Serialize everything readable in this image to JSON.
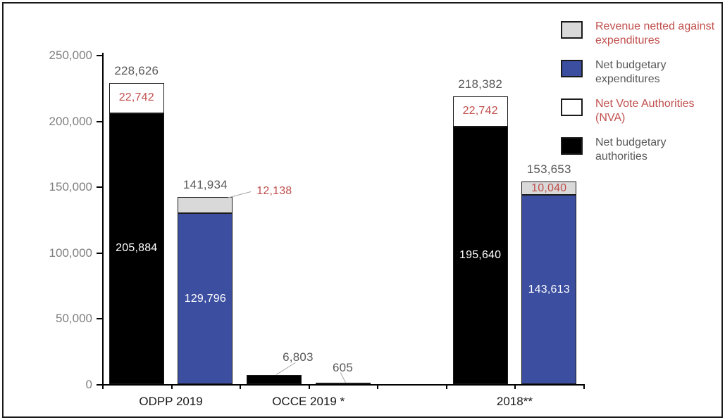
{
  "page": {
    "background": "#ffffff",
    "frame_border": "#1a1a1a"
  },
  "chart_data": {
    "type": "bar",
    "stacked": true,
    "title": "",
    "xlabel": "",
    "ylabel": "",
    "grid": false,
    "legend_position": "top-right",
    "ylim": [
      0,
      250000
    ],
    "slot_count": 7,
    "y_ticks": [
      {
        "value": 0,
        "label": "0"
      },
      {
        "value": 50000,
        "label": "50,000"
      },
      {
        "value": 100000,
        "label": "100,000"
      },
      {
        "value": 150000,
        "label": "150,000"
      },
      {
        "value": 200000,
        "label": "200,000"
      },
      {
        "value": 250000,
        "label": "250,000"
      }
    ],
    "categories": [
      "ODPP 2019",
      "OCCE 2019 *",
      "2018**"
    ],
    "category_labels": [
      {
        "text": "ODPP 2019",
        "slot_start": 0,
        "slot_end": 1
      },
      {
        "text": "OCCE 2019 *",
        "slot_start": 2,
        "slot_end": 3
      },
      {
        "text": "2018**",
        "slot_start": 5,
        "slot_end": 6
      }
    ],
    "colors": {
      "black": "#000000",
      "white": "#ffffff",
      "blue": "#3c4ea0",
      "gray": "#d9d9d9",
      "red_label": "#c0504d",
      "white_label": "#ffffff",
      "gray_text": "#595959",
      "axis_text": "#7f7f7f",
      "callout_line": "#a6a6a6",
      "border": "#1a1a1a"
    },
    "legend": [
      {
        "label": "Revenue netted against expenditures",
        "fill": "gray",
        "text_color": "#c0504d"
      },
      {
        "label": "Net budgetary expenditures",
        "fill": "blue",
        "text_color": "#595959"
      },
      {
        "label": "Net Vote Authorities (NVA)",
        "fill": "white",
        "text_color": "#c0504d"
      },
      {
        "label": "Net budgetary authorities",
        "fill": "black",
        "text_color": "#595959"
      }
    ],
    "bars": [
      {
        "category": "ODPP 2019",
        "slot": 0,
        "total": 228626,
        "total_label": "228,626",
        "segments": [
          {
            "legend": "Net budgetary authorities",
            "value": 205884,
            "label": "205,884",
            "fill": "black",
            "label_color": "#ffffff"
          },
          {
            "legend": "Net Vote Authorities (NVA)",
            "value": 22742,
            "label": "22,742",
            "fill": "white",
            "label_color": "#c0504d"
          }
        ]
      },
      {
        "category": "ODPP 2019",
        "slot": 1,
        "total": 141934,
        "total_label": "141,934",
        "segments": [
          {
            "legend": "Net budgetary expenditures",
            "value": 129796,
            "label": "129,796",
            "fill": "blue",
            "label_color": "#ffffff"
          },
          {
            "legend": "Revenue netted against expenditures",
            "value": 12138,
            "label": "12,138",
            "fill": "gray",
            "label_color": "#c0504d",
            "callout": {
              "dx": 98,
              "dy": -8
            }
          }
        ]
      },
      {
        "category": "OCCE 2019 *",
        "slot": 2,
        "total": 6803,
        "total_label": "6,803",
        "total_callout": {
          "dx": 34,
          "dy": -26
        },
        "segments": [
          {
            "legend": "Net budgetary authorities",
            "value": 6803,
            "fill": "black"
          }
        ]
      },
      {
        "category": "OCCE 2019 *",
        "slot": 3,
        "total": 605,
        "total_label": "605",
        "total_callout": {
          "dx": 0,
          "dy": -23
        },
        "segments": [
          {
            "legend": "Net budgetary authorities",
            "value": 605,
            "fill": "black"
          }
        ]
      },
      {
        "category": "2018**",
        "slot": 5,
        "total": 218382,
        "total_label": "218,382",
        "segments": [
          {
            "legend": "Net budgetary authorities",
            "value": 195640,
            "label": "195,640",
            "fill": "black",
            "label_color": "#ffffff"
          },
          {
            "legend": "Net Vote Authorities (NVA)",
            "value": 22742,
            "label": "22,742",
            "fill": "white",
            "label_color": "#c0504d"
          }
        ]
      },
      {
        "category": "2018**",
        "slot": 6,
        "total": 153653,
        "total_label": "153,653",
        "segments": [
          {
            "legend": "Net budgetary expenditures",
            "value": 143613,
            "label": "143,613",
            "fill": "blue",
            "label_color": "#ffffff"
          },
          {
            "legend": "Revenue netted against expenditures",
            "value": 10040,
            "label": "10,040",
            "fill": "gray",
            "label_color": "#c0504d"
          }
        ]
      }
    ]
  }
}
